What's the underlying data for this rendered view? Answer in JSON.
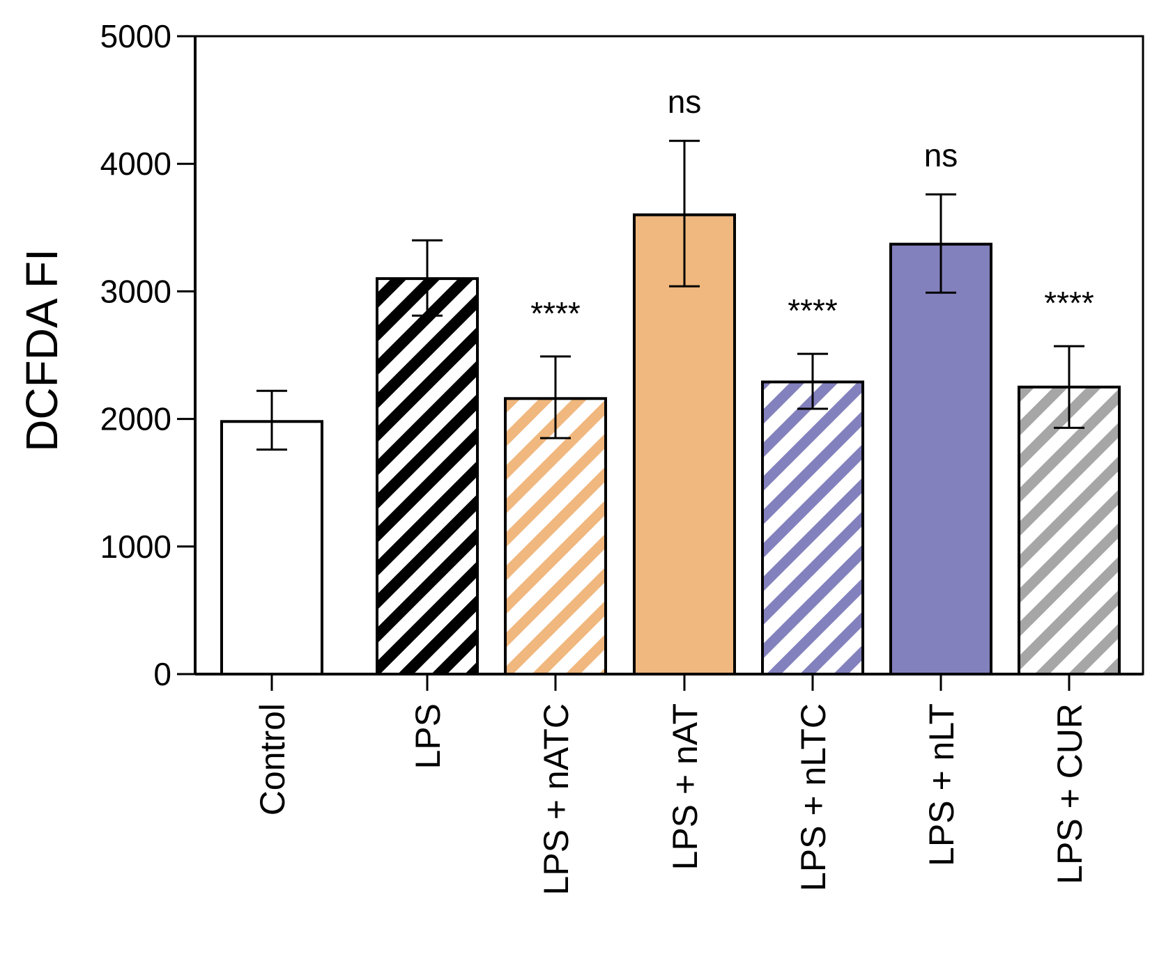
{
  "chart_data": {
    "type": "bar",
    "title": "",
    "xlabel": "",
    "ylabel": "DCFDA FI",
    "ylim": [
      0,
      5000
    ],
    "yticks": [
      0,
      1000,
      2000,
      3000,
      4000,
      5000
    ],
    "ytick_labels": [
      "0",
      "1000",
      "2000",
      "3000",
      "4000",
      "5000"
    ],
    "categories": [
      "Control",
      "LPS",
      "LPS + nATC",
      "LPS + nAT",
      "LPS + nLTC",
      "LPS + nLT",
      "LPS + CUR"
    ],
    "values": [
      1980,
      3100,
      2160,
      3600,
      2290,
      3370,
      2250
    ],
    "error_low": [
      1760,
      2810,
      1850,
      3040,
      2080,
      2990,
      1930
    ],
    "error_high": [
      2220,
      3400,
      2490,
      4180,
      2510,
      3760,
      2570
    ],
    "annotations": [
      "",
      "",
      "****",
      "ns",
      "****",
      "ns",
      "****"
    ],
    "bar_styles": [
      {
        "fill": "#ffffff",
        "stripe": ""
      },
      {
        "fill": "#ffffff",
        "stripe": "#000000"
      },
      {
        "fill": "#ffffff",
        "stripe": "#f0b77e"
      },
      {
        "fill": "#f0b77e",
        "stripe": ""
      },
      {
        "fill": "#ffffff",
        "stripe": "#8381bd"
      },
      {
        "fill": "#8381bd",
        "stripe": ""
      },
      {
        "fill": "#ffffff",
        "stripe": "#a6a6a6"
      }
    ]
  }
}
